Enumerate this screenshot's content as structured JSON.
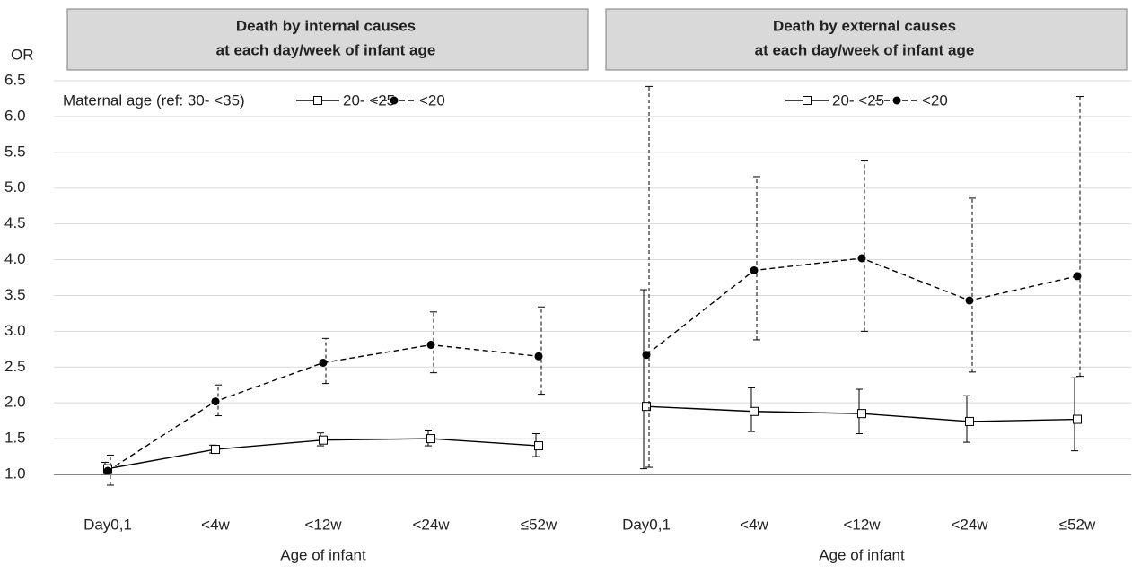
{
  "chart_data": [
    {
      "type": "line",
      "title": [
        "Death by internal causes",
        "at each day/week of infant age"
      ],
      "y_label": "OR",
      "x_label": "Age of infant",
      "legend_title": "Maternal age  (ref: 30- <35)",
      "categories": [
        "Day0,1",
        "<4w",
        "<12w",
        "<24w",
        "≤52w"
      ],
      "ylim": [
        0.7,
        6.5
      ],
      "yticks": [
        {
          "value": 1,
          "label": "1.0"
        },
        1.5,
        {
          "value": 2,
          "label": "2.0"
        },
        2.5,
        {
          "value": 3,
          "label": "3.0"
        },
        3.5,
        {
          "value": 4,
          "label": "4.0"
        },
        4.5,
        {
          "value": 5,
          "label": "5.0"
        },
        5.5,
        {
          "value": 6,
          "label": "6.0"
        },
        6.5
      ],
      "grid": true,
      "series": [
        {
          "name": "20- <25",
          "color": "#000000",
          "line_style": "solid",
          "marker": "square",
          "values": [
            1.08,
            1.35,
            1.48,
            1.5,
            1.4
          ],
          "lower": [
            1.0,
            1.3,
            1.4,
            1.4,
            1.25
          ],
          "upper": [
            1.17,
            1.41,
            1.58,
            1.62,
            1.57
          ]
        },
        {
          "name": "<20",
          "color": "#000000",
          "line_style": "dashed",
          "marker": "circle",
          "values": [
            1.05,
            2.02,
            2.56,
            2.81,
            2.65
          ],
          "lower": [
            0.85,
            1.82,
            2.27,
            2.42,
            2.12
          ],
          "upper": [
            1.27,
            2.25,
            2.9,
            3.27,
            3.34
          ]
        }
      ]
    },
    {
      "type": "line",
      "title": [
        "Death by external causes",
        "at each day/week of infant age"
      ],
      "x_label": "Age of infant",
      "categories": [
        "Day0,1",
        "<4w",
        "<12w",
        "<24w",
        "≤52w"
      ],
      "ylim": [
        0.7,
        6.5
      ],
      "series": [
        {
          "name": "20- <25",
          "color": "#000000",
          "line_style": "solid",
          "marker": "square",
          "values": [
            1.95,
            1.88,
            1.85,
            1.74,
            1.77
          ],
          "lower": [
            1.08,
            1.6,
            1.57,
            1.45,
            1.33
          ],
          "upper": [
            3.58,
            2.21,
            2.19,
            2.1,
            2.35
          ]
        },
        {
          "name": "<20",
          "color": "#000000",
          "line_style": "dashed",
          "marker": "circle",
          "values": [
            2.67,
            3.85,
            4.02,
            3.43,
            3.77
          ],
          "lower": [
            1.1,
            2.88,
            3.0,
            2.43,
            2.37
          ],
          "upper": [
            6.42,
            5.16,
            5.39,
            4.86,
            6.28
          ]
        }
      ]
    }
  ]
}
